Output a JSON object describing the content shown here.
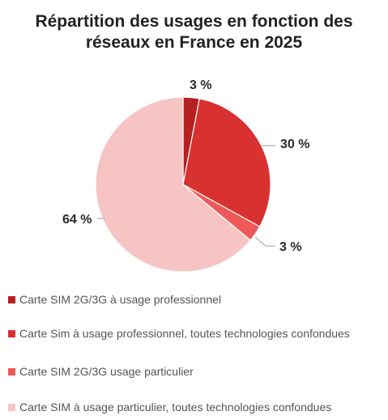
{
  "chart_data": {
    "type": "pie",
    "title_lines": [
      "Répartition des usages en fonction des",
      "réseaux en France en 2025"
    ],
    "slices": [
      {
        "label": "Carte SIM 2G/3G à usage professionnel",
        "value": 3,
        "value_label": "3 %",
        "color": "#b52020"
      },
      {
        "label": "Carte Sim à usage professionnel, toutes technologies confondues",
        "value": 30,
        "value_label": "30 %",
        "color": "#d93030"
      },
      {
        "label": "Carte SIM 2G/3G  usage particulier",
        "value": 3,
        "value_label": "3 %",
        "color": "#ef5858"
      },
      {
        "label": "Carte SIM à usage particulier, toutes technologies confondues",
        "value": 64,
        "value_label": "64 %",
        "color": "#f7c4c4"
      }
    ],
    "legend_position": "bottom"
  }
}
